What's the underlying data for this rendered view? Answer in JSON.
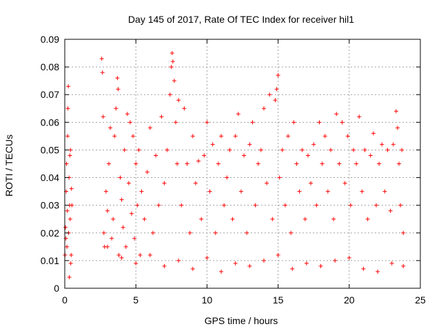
{
  "chart_data": {
    "type": "scatter",
    "title": "Day 145 of 2017, Rate Of TEC Index for receiver hil1",
    "xlabel": "GPS time / hours",
    "ylabel": "ROTI / TECUs",
    "xlim": [
      0,
      25
    ],
    "ylim": [
      0,
      0.09
    ],
    "xticks": [
      0,
      5,
      10,
      15,
      20,
      25
    ],
    "yticks": [
      0,
      0.01,
      0.02,
      0.03,
      0.04,
      0.05,
      0.06,
      0.07,
      0.08,
      0.09
    ],
    "xtick_labels": [
      "0",
      "5",
      "10",
      "15",
      "20",
      "25"
    ],
    "ytick_labels": [
      "0",
      "0.01",
      "0.02",
      "0.03",
      "0.04",
      "0.05",
      "0.06",
      "0.07",
      "0.08",
      "0.09"
    ],
    "grid": true,
    "marker": "+",
    "color": "#ff0000",
    "series": [
      {
        "points": [
          [
            0.02,
            0.012
          ],
          [
            0.05,
            0.022
          ],
          [
            0.08,
            0.018
          ],
          [
            0.1,
            0.035
          ],
          [
            0.12,
            0.045
          ],
          [
            0.15,
            0.015
          ],
          [
            0.18,
            0.028
          ],
          [
            0.2,
            0.055
          ],
          [
            0.22,
            0.065
          ],
          [
            0.25,
            0.073
          ],
          [
            0.27,
            0.02
          ],
          [
            0.3,
            0.04
          ],
          [
            0.32,
            0.004
          ],
          [
            0.34,
            0.03
          ],
          [
            0.36,
            0.048
          ],
          [
            0.38,
            0.025
          ],
          [
            0.4,
            0.05
          ],
          [
            0.42,
            0.009
          ],
          [
            0.45,
            0.012
          ],
          [
            0.47,
            0.036
          ],
          [
            0.5,
            0.03
          ],
          [
            2.6,
            0.083
          ],
          [
            2.65,
            0.078
          ],
          [
            2.7,
            0.062
          ],
          [
            2.75,
            0.02
          ],
          [
            2.8,
            0.015
          ],
          [
            2.9,
            0.035
          ],
          [
            3.0,
            0.028
          ],
          [
            3.1,
            0.045
          ],
          [
            3.2,
            0.058
          ],
          [
            3.3,
            0.018
          ],
          [
            3.4,
            0.025
          ],
          [
            3.5,
            0.055
          ],
          [
            3.6,
            0.065
          ],
          [
            3.7,
            0.076
          ],
          [
            3.75,
            0.072
          ],
          [
            3.8,
            0.012
          ],
          [
            3.9,
            0.04
          ],
          [
            4.0,
            0.032
          ],
          [
            4.1,
            0.022
          ],
          [
            4.2,
            0.05
          ],
          [
            4.3,
            0.015
          ],
          [
            4.4,
            0.063
          ],
          [
            4.5,
            0.038
          ],
          [
            4.6,
            0.06
          ],
          [
            4.7,
            0.027
          ],
          [
            4.8,
            0.055
          ],
          [
            4.9,
            0.018
          ],
          [
            5.0,
            0.045
          ],
          [
            5.1,
            0.03
          ],
          [
            5.2,
            0.05
          ],
          [
            5.3,
            0.012
          ],
          [
            5.4,
            0.035
          ],
          [
            5.6,
            0.025
          ],
          [
            5.8,
            0.042
          ],
          [
            6.0,
            0.058
          ],
          [
            6.2,
            0.02
          ],
          [
            6.4,
            0.048
          ],
          [
            6.6,
            0.03
          ],
          [
            6.8,
            0.062
          ],
          [
            7.0,
            0.038
          ],
          [
            7.2,
            0.05
          ],
          [
            7.4,
            0.07
          ],
          [
            7.5,
            0.08
          ],
          [
            7.55,
            0.085
          ],
          [
            7.6,
            0.082
          ],
          [
            7.7,
            0.075
          ],
          [
            7.8,
            0.06
          ],
          [
            7.9,
            0.045
          ],
          [
            8.0,
            0.068
          ],
          [
            8.2,
            0.03
          ],
          [
            8.4,
            0.065
          ],
          [
            8.6,
            0.045
          ],
          [
            8.8,
            0.02
          ],
          [
            9.0,
            0.055
          ],
          [
            9.2,
            0.038
          ],
          [
            9.4,
            0.046
          ],
          [
            9.6,
            0.025
          ],
          [
            9.8,
            0.048
          ],
          [
            10.0,
            0.06
          ],
          [
            10.2,
            0.035
          ],
          [
            10.4,
            0.052
          ],
          [
            10.6,
            0.02
          ],
          [
            10.8,
            0.045
          ],
          [
            11.0,
            0.055
          ],
          [
            11.2,
            0.03
          ],
          [
            11.4,
            0.04
          ],
          [
            11.6,
            0.05
          ],
          [
            11.8,
            0.025
          ],
          [
            12.0,
            0.055
          ],
          [
            12.2,
            0.063
          ],
          [
            12.4,
            0.035
          ],
          [
            12.6,
            0.048
          ],
          [
            12.8,
            0.02
          ],
          [
            13.0,
            0.052
          ],
          [
            13.2,
            0.06
          ],
          [
            13.4,
            0.03
          ],
          [
            13.6,
            0.045
          ],
          [
            13.8,
            0.05
          ],
          [
            14.0,
            0.065
          ],
          [
            14.2,
            0.038
          ],
          [
            14.4,
            0.07
          ],
          [
            14.6,
            0.025
          ],
          [
            14.8,
            0.068
          ],
          [
            14.9,
            0.072
          ],
          [
            15.0,
            0.077
          ],
          [
            15.1,
            0.04
          ],
          [
            15.3,
            0.05
          ],
          [
            15.5,
            0.03
          ],
          [
            15.7,
            0.055
          ],
          [
            15.9,
            0.02
          ],
          [
            16.1,
            0.06
          ],
          [
            16.3,
            0.045
          ],
          [
            16.5,
            0.035
          ],
          [
            16.7,
            0.05
          ],
          [
            16.9,
            0.025
          ],
          [
            17.1,
            0.048
          ],
          [
            17.3,
            0.038
          ],
          [
            17.5,
            0.052
          ],
          [
            17.7,
            0.03
          ],
          [
            17.9,
            0.06
          ],
          [
            18.1,
            0.045
          ],
          [
            18.3,
            0.055
          ],
          [
            18.5,
            0.035
          ],
          [
            18.7,
            0.05
          ],
          [
            18.9,
            0.025
          ],
          [
            19.1,
            0.063
          ],
          [
            19.3,
            0.045
          ],
          [
            19.5,
            0.06
          ],
          [
            19.7,
            0.038
          ],
          [
            19.9,
            0.055
          ],
          [
            20.1,
            0.03
          ],
          [
            20.3,
            0.05
          ],
          [
            20.5,
            0.045
          ],
          [
            20.7,
            0.062
          ],
          [
            20.9,
            0.035
          ],
          [
            21.1,
            0.05
          ],
          [
            21.3,
            0.025
          ],
          [
            21.5,
            0.048
          ],
          [
            21.7,
            0.056
          ],
          [
            21.9,
            0.03
          ],
          [
            22.1,
            0.045
          ],
          [
            22.3,
            0.052
          ],
          [
            22.5,
            0.035
          ],
          [
            22.7,
            0.05
          ],
          [
            22.9,
            0.028
          ],
          [
            23.1,
            0.052
          ],
          [
            23.3,
            0.064
          ],
          [
            23.4,
            0.058
          ],
          [
            23.5,
            0.045
          ],
          [
            23.6,
            0.03
          ],
          [
            23.7,
            0.05
          ],
          [
            23.8,
            0.02
          ],
          [
            3.0,
            0.015
          ],
          [
            4.0,
            0.011
          ],
          [
            5.0,
            0.009
          ],
          [
            6.0,
            0.012
          ],
          [
            7.0,
            0.008
          ],
          [
            8.0,
            0.01
          ],
          [
            9.0,
            0.007
          ],
          [
            10.0,
            0.011
          ],
          [
            11.0,
            0.006
          ],
          [
            12.0,
            0.009
          ],
          [
            13.0,
            0.008
          ],
          [
            14.0,
            0.01
          ],
          [
            15.0,
            0.012
          ],
          [
            16.0,
            0.007
          ],
          [
            17.0,
            0.009
          ],
          [
            18.0,
            0.008
          ],
          [
            19.0,
            0.01
          ],
          [
            20.0,
            0.011
          ],
          [
            21.0,
            0.007
          ],
          [
            22.0,
            0.006
          ],
          [
            23.0,
            0.009
          ],
          [
            23.8,
            0.008
          ]
        ]
      }
    ]
  }
}
